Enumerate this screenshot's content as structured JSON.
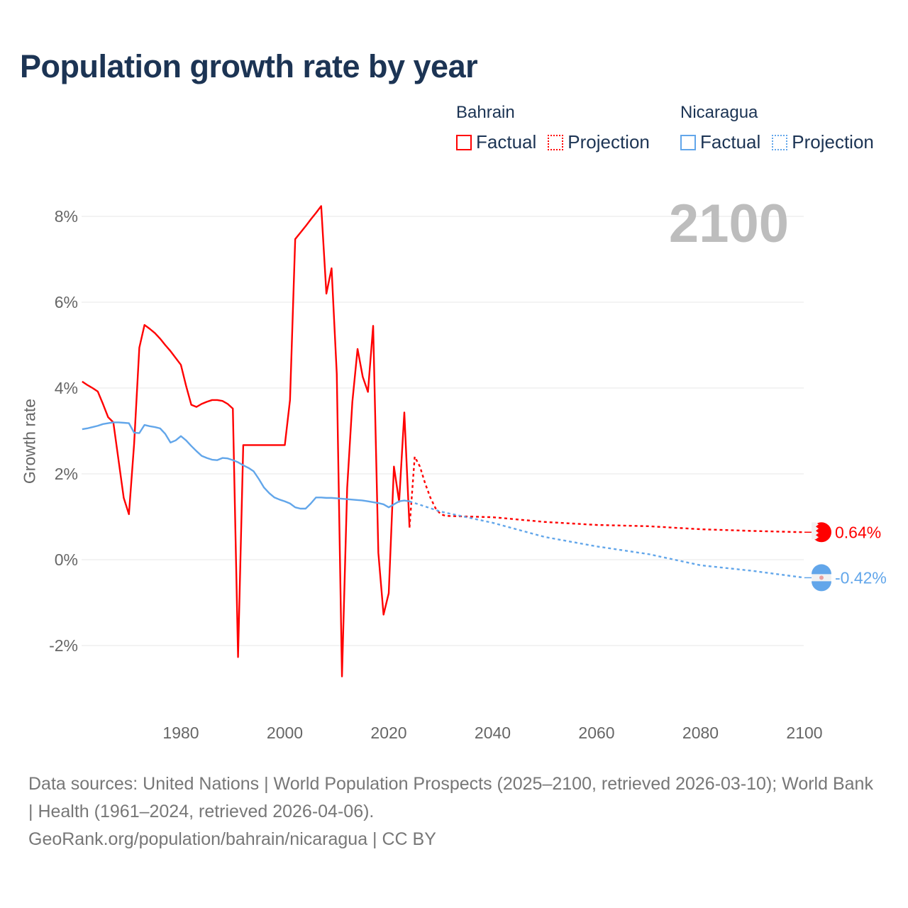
{
  "title": "Population growth rate by year",
  "current_year_label": "2100",
  "legend": [
    {
      "group": "Bahrain",
      "color": "#ff0000",
      "items": [
        "Factual",
        "Projection"
      ]
    },
    {
      "group": "Nicaragua",
      "color": "#62a6ea",
      "items": [
        "Factual",
        "Projection"
      ]
    }
  ],
  "source": {
    "line1": "Data sources: United Nations | World Population Prospects (2025–2100, retrieved 2026-03-10); World Bank | Health (1961–2024, retrieved 2026-04-06).",
    "line2": "GeoRank.org/population/bahrain/nicaragua | CC BY"
  },
  "chart_data": {
    "type": "line",
    "title": "Population growth rate by year",
    "xlabel": "",
    "ylabel": "Growth rate",
    "xlim": [
      1961,
      2100
    ],
    "ylim": [
      -3,
      8.5
    ],
    "x_ticks": [
      1980,
      2000,
      2020,
      2040,
      2060,
      2080,
      2100
    ],
    "y_ticks": [
      -2,
      0,
      2,
      4,
      6,
      8
    ],
    "y_tick_labels": [
      "-2%",
      "0%",
      "2%",
      "4%",
      "6%",
      "8%"
    ],
    "grid": true,
    "legend_position": "top-right",
    "series": [
      {
        "name": "Bahrain",
        "color": "#ff0000",
        "factual_start": 1961,
        "factual": [
          4.15,
          4.07,
          4.0,
          3.92,
          3.63,
          3.32,
          3.2,
          2.32,
          1.44,
          1.06,
          2.7,
          4.94,
          5.47,
          5.38,
          5.28,
          5.15,
          5.0,
          4.86,
          4.7,
          4.54,
          4.05,
          3.61,
          3.56,
          3.63,
          3.68,
          3.72,
          3.72,
          3.7,
          3.63,
          3.52,
          -2.27,
          2.67,
          2.67,
          2.67,
          2.67,
          2.67,
          2.67,
          2.67,
          2.67,
          2.67,
          3.72,
          7.47,
          7.62,
          7.77,
          7.93,
          8.08,
          8.24,
          6.2,
          6.79,
          4.33,
          -2.72,
          1.67,
          3.68,
          4.91,
          4.26,
          3.91,
          5.45,
          0.16,
          -1.28,
          -0.78,
          2.17,
          1.35,
          3.43,
          0.75
        ],
        "projection": [
          [
            2024,
            0.75
          ],
          [
            2025,
            2.4
          ],
          [
            2026,
            2.17
          ],
          [
            2027,
            1.78
          ],
          [
            2028,
            1.45
          ],
          [
            2029,
            1.2
          ],
          [
            2030,
            1.06
          ],
          [
            2031,
            1.02
          ],
          [
            2040,
            0.99
          ],
          [
            2050,
            0.88
          ],
          [
            2060,
            0.81
          ],
          [
            2070,
            0.78
          ],
          [
            2080,
            0.71
          ],
          [
            2090,
            0.67
          ],
          [
            2100,
            0.64
          ]
        ],
        "end_label": "0.64%"
      },
      {
        "name": "Nicaragua",
        "color": "#62a6ea",
        "factual_start": 1961,
        "factual": [
          3.04,
          3.06,
          3.09,
          3.12,
          3.16,
          3.18,
          3.2,
          3.2,
          3.19,
          3.18,
          2.96,
          2.95,
          3.14,
          3.11,
          3.09,
          3.06,
          2.93,
          2.73,
          2.78,
          2.88,
          2.78,
          2.65,
          2.53,
          2.42,
          2.37,
          2.33,
          2.32,
          2.37,
          2.36,
          2.32,
          2.27,
          2.2,
          2.14,
          2.06,
          1.88,
          1.68,
          1.55,
          1.45,
          1.4,
          1.36,
          1.31,
          1.22,
          1.19,
          1.19,
          1.31,
          1.45,
          1.45,
          1.44,
          1.44,
          1.43,
          1.42,
          1.41,
          1.4,
          1.39,
          1.38,
          1.36,
          1.34,
          1.32,
          1.29,
          1.22,
          1.29,
          1.36,
          1.38,
          1.36
        ],
        "projection": [
          [
            2024,
            1.36
          ],
          [
            2030,
            1.12
          ],
          [
            2040,
            0.86
          ],
          [
            2050,
            0.53
          ],
          [
            2060,
            0.31
          ],
          [
            2070,
            0.13
          ],
          [
            2080,
            -0.13
          ],
          [
            2090,
            -0.26
          ],
          [
            2100,
            -0.42
          ]
        ],
        "end_label": "-0.42%"
      }
    ]
  }
}
